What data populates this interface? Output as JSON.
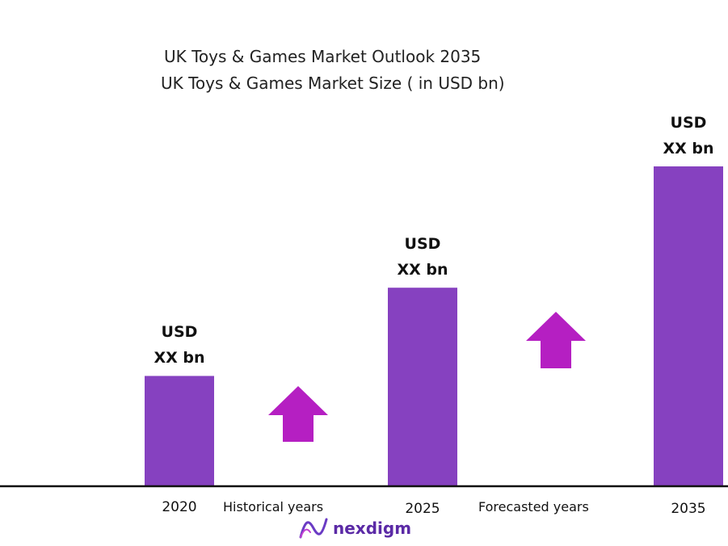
{
  "chart_data": {
    "type": "bar",
    "title": "UK  Toys & Games Market Outlook 2035",
    "subtitle": "UK Toys & Games Market Size  ( in USD bn)",
    "categories": [
      "2020",
      "2025",
      "2035"
    ],
    "values": [
      1.0,
      1.8,
      2.9
    ],
    "data_labels": [
      [
        "USD",
        "XX bn"
      ],
      [
        "USD",
        "XX bn"
      ],
      [
        "USD",
        "XX bn"
      ]
    ],
    "period_labels": [
      "Historical years",
      "Forecasted years"
    ],
    "bar_color": "#8641c0",
    "arrow_color": "#b51fc2",
    "axis_color": "#111111",
    "grid": false,
    "legend": "none"
  },
  "logo": {
    "text": "nexdigm",
    "icon": "nexdigm-wave-icon",
    "color": "#5b2aa6"
  }
}
